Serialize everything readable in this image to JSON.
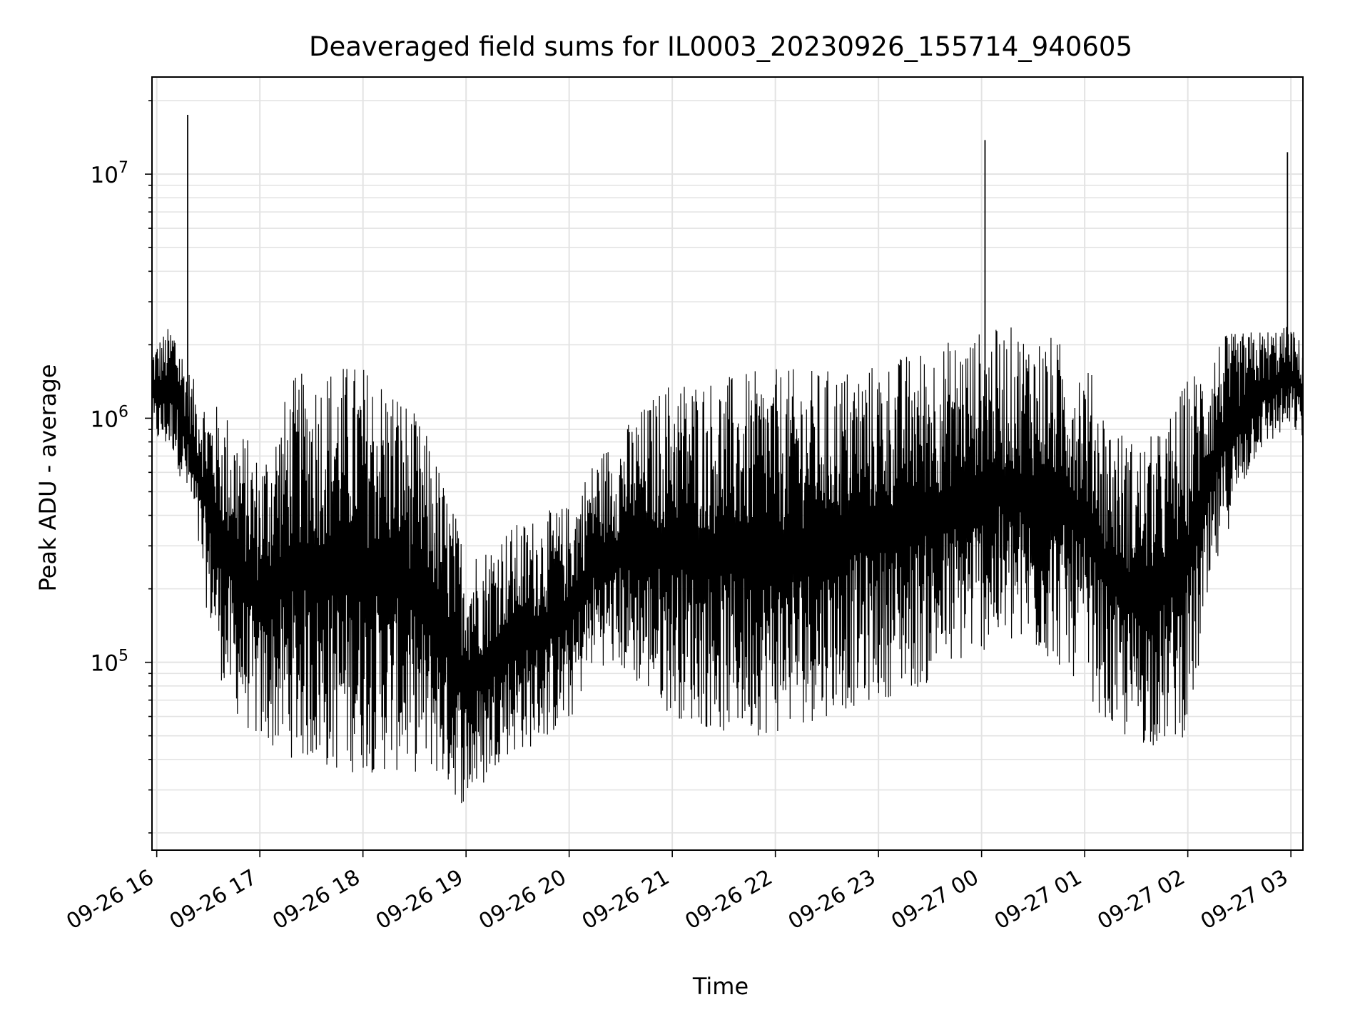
{
  "chart_data": {
    "type": "line",
    "title": "Deaveraged field sums for IL0003_20230926_155714_940605",
    "xlabel": "Time",
    "ylabel": "Peak ADU - average",
    "xscale": "time",
    "yscale": "log",
    "xlim": [
      "2023-09-26T15:57:14",
      "2023-09-27T03:07:00"
    ],
    "ylim": [
      17000,
      25000000
    ],
    "grid": true,
    "line_color": "#000000",
    "x_ticks": [
      "09-26 16",
      "09-26 17",
      "09-26 18",
      "09-26 19",
      "09-26 20",
      "09-26 21",
      "09-26 22",
      "09-26 23",
      "09-27 00",
      "09-27 01",
      "09-27 02",
      "09-27 03"
    ],
    "y_ticks": [
      {
        "base": "10",
        "exp": "5",
        "value": 100000
      },
      {
        "base": "10",
        "exp": "6",
        "value": 1000000
      },
      {
        "base": "10",
        "exp": "7",
        "value": 10000000
      }
    ],
    "series": [
      {
        "envelope": {
          "time": [
            "2023-09-26T15:57:14",
            "2023-09-26T16:10",
            "2023-09-26T16:20",
            "2023-09-26T16:30",
            "2023-09-26T16:40",
            "2023-09-26T16:50",
            "2023-09-26T17:00",
            "2023-09-26T17:20",
            "2023-09-26T17:40",
            "2023-09-26T18:00",
            "2023-09-26T18:20",
            "2023-09-26T18:40",
            "2023-09-26T19:00",
            "2023-09-26T19:10",
            "2023-09-26T19:20",
            "2023-09-26T19:40",
            "2023-09-26T20:00",
            "2023-09-26T20:15",
            "2023-09-26T20:30",
            "2023-09-26T21:00",
            "2023-09-26T21:30",
            "2023-09-26T22:00",
            "2023-09-26T22:30",
            "2023-09-26T23:00",
            "2023-09-26T23:30",
            "2023-09-27T00:00",
            "2023-09-27T00:20",
            "2023-09-27T00:40",
            "2023-09-27T01:00",
            "2023-09-27T01:15",
            "2023-09-27T01:30",
            "2023-09-27T01:45",
            "2023-09-27T02:00",
            "2023-09-27T02:20",
            "2023-09-27T02:40",
            "2023-09-27T03:00",
            "2023-09-27T03:07"
          ],
          "low": [
            800000,
            700000,
            400000,
            150000,
            70000,
            55000,
            45000,
            40000,
            35000,
            35000,
            35000,
            35000,
            25000,
            30000,
            40000,
            45000,
            55000,
            100000,
            90000,
            60000,
            50000,
            50000,
            60000,
            70000,
            80000,
            110000,
            110000,
            100000,
            80000,
            50000,
            45000,
            45000,
            50000,
            300000,
            700000,
            900000,
            800000
          ],
          "high": [
            2000000,
            2500000,
            1500000,
            1200000,
            1100000,
            900000,
            700000,
            1500000,
            1700000,
            1700000,
            1400000,
            800000,
            300000,
            300000,
            350000,
            400000,
            450000,
            700000,
            900000,
            1500000,
            1500000,
            1600000,
            1600000,
            1700000,
            2000000,
            2300000,
            2400000,
            2200000,
            1800000,
            1000000,
            800000,
            900000,
            1500000,
            2200000,
            2300000,
            2400000,
            2000000
          ]
        },
        "spikes": [
          {
            "time": "2023-09-26T16:18",
            "value": 17500000
          },
          {
            "time": "2023-09-27T00:02",
            "value": 13800000
          },
          {
            "time": "2023-09-27T02:58",
            "value": 12300000
          }
        ]
      }
    ]
  }
}
